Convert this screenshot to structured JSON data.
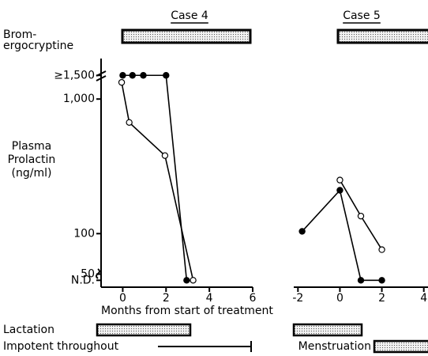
{
  "chart_data": [
    {
      "type": "line",
      "title": "Case 4",
      "ylabel": [
        "Plasma",
        "Prolactin",
        "(ng/ml)"
      ],
      "xlabel": "Months from start of treatment",
      "annotations": [
        "Brom-",
        "ergocryptine",
        "Lactation",
        "Impotent throughout"
      ],
      "ylog": true,
      "ylim": [
        40,
        2000
      ],
      "yticks": [
        {
          "value": 45,
          "label": "N.D."
        },
        50,
        100,
        {
          "value": 1000,
          "label": "1,000"
        },
        {
          "value": 1500,
          "label": "≥1,500"
        }
      ],
      "xlim": [
        -1,
        6
      ],
      "xticks": [
        0,
        2,
        4,
        6
      ],
      "series": [
        {
          "color": "#000000",
          "marker": "filled",
          "x": [
            0,
            0.45,
            0.95,
            2,
            2.95
          ],
          "values": [
            1500,
            1500,
            1500,
            1500,
            45
          ]
        },
        {
          "color": "#000000",
          "marker": "open",
          "x": [
            -0.05,
            0.3,
            1.95,
            3.25
          ],
          "values": [
            1330,
            670,
            380,
            45
          ]
        }
      ]
    },
    {
      "type": "line",
      "title": "Case 5",
      "annotations": [
        "Menstruation"
      ],
      "ylog": true,
      "ylim": [
        40,
        2000
      ],
      "xlim": [
        -2.2,
        4.2
      ],
      "xticks": [
        -2,
        0,
        2,
        4
      ],
      "series": [
        {
          "color": "#000000",
          "marker": "filled",
          "x": [
            -1.8,
            0,
            1,
            2
          ],
          "values": [
            104,
            210,
            45,
            45
          ]
        },
        {
          "color": "#000000",
          "marker": "open",
          "x": [
            0,
            1,
            2
          ],
          "values": [
            250,
            135,
            76
          ]
        }
      ]
    }
  ]
}
